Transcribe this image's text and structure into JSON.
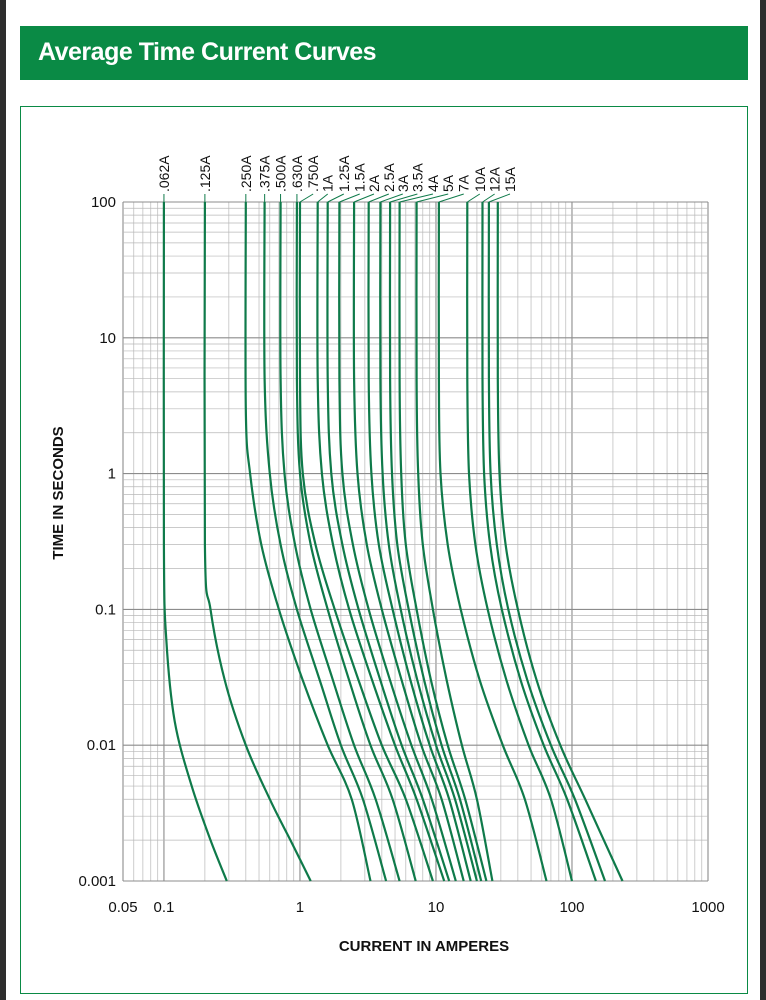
{
  "banner": {
    "title": "Average Time Current Curves"
  },
  "colors": {
    "accent": "#0a8a45",
    "curve": "#0f7a4a",
    "grid": "#b8b8b8"
  },
  "chart_data": {
    "type": "line",
    "title": "Average Time Current Curves",
    "xlabel": "CURRENT IN AMPERES",
    "ylabel": "TIME IN SECONDS",
    "xscale": "log",
    "yscale": "log",
    "xlim": [
      0.05,
      1000
    ],
    "ylim": [
      0.001,
      100
    ],
    "x_ticks": [
      {
        "v": 0.05,
        "label": "0.05"
      },
      {
        "v": 0.1,
        "label": "0.1"
      },
      {
        "v": 1,
        "label": "1"
      },
      {
        "v": 10,
        "label": "10"
      },
      {
        "v": 100,
        "label": "100"
      },
      {
        "v": 1000,
        "label": "1000"
      }
    ],
    "y_ticks": [
      {
        "v": 100,
        "label": "100"
      },
      {
        "v": 10,
        "label": "10"
      },
      {
        "v": 1,
        "label": "1"
      },
      {
        "v": 0.1,
        "label": "0.1"
      },
      {
        "v": 0.01,
        "label": "0.01"
      },
      {
        "v": 0.001,
        "label": "0.001"
      }
    ],
    "grid": true,
    "series": [
      {
        "name": ".062A",
        "points": [
          [
            0.1,
            100
          ],
          [
            0.1,
            0.3
          ],
          [
            0.104,
            0.06
          ],
          [
            0.12,
            0.015
          ],
          [
            0.16,
            0.005
          ],
          [
            0.22,
            0.002
          ],
          [
            0.29,
            0.001
          ]
        ]
      },
      {
        "name": ".125A",
        "points": [
          [
            0.2,
            100
          ],
          [
            0.2,
            0.3
          ],
          [
            0.22,
            0.1
          ],
          [
            0.28,
            0.03
          ],
          [
            0.4,
            0.01
          ],
          [
            0.6,
            0.004
          ],
          [
            0.85,
            0.002
          ],
          [
            1.2,
            0.001
          ]
        ]
      },
      {
        "name": ".250A",
        "points": [
          [
            0.4,
            100
          ],
          [
            0.4,
            3
          ],
          [
            0.43,
            1
          ],
          [
            0.52,
            0.3
          ],
          [
            0.7,
            0.1
          ],
          [
            1.05,
            0.03
          ],
          [
            1.6,
            0.01
          ],
          [
            2.4,
            0.004
          ],
          [
            3.3,
            0.001
          ]
        ]
      },
      {
        "name": ".375A",
        "points": [
          [
            0.55,
            100
          ],
          [
            0.55,
            5
          ],
          [
            0.6,
            1
          ],
          [
            0.72,
            0.3
          ],
          [
            0.95,
            0.1
          ],
          [
            1.4,
            0.03
          ],
          [
            2.0,
            0.01
          ],
          [
            2.9,
            0.004
          ],
          [
            4.3,
            0.001
          ]
        ]
      },
      {
        "name": ".500A",
        "points": [
          [
            0.72,
            100
          ],
          [
            0.72,
            5
          ],
          [
            0.77,
            1
          ],
          [
            0.92,
            0.3
          ],
          [
            1.2,
            0.1
          ],
          [
            1.75,
            0.03
          ],
          [
            2.5,
            0.01
          ],
          [
            3.6,
            0.004
          ],
          [
            5.4,
            0.001
          ]
        ]
      },
      {
        "name": ".630A",
        "points": [
          [
            0.95,
            100
          ],
          [
            0.95,
            5
          ],
          [
            1.0,
            1
          ],
          [
            1.2,
            0.3
          ],
          [
            1.6,
            0.1
          ],
          [
            2.3,
            0.03
          ],
          [
            3.3,
            0.01
          ],
          [
            4.8,
            0.004
          ],
          [
            7.1,
            0.001
          ]
        ]
      },
      {
        "name": ".750A",
        "points": [
          [
            1.0,
            100
          ],
          [
            1.0,
            5
          ],
          [
            1.05,
            1
          ],
          [
            1.3,
            0.3
          ],
          [
            1.8,
            0.1
          ],
          [
            2.7,
            0.03
          ],
          [
            4.0,
            0.01
          ],
          [
            6.0,
            0.004
          ],
          [
            9.5,
            0.001
          ]
        ]
      },
      {
        "name": "1A",
        "points": [
          [
            1.35,
            100
          ],
          [
            1.35,
            5
          ],
          [
            1.45,
            1
          ],
          [
            1.75,
            0.3
          ],
          [
            2.3,
            0.1
          ],
          [
            3.4,
            0.03
          ],
          [
            5.0,
            0.01
          ],
          [
            7.2,
            0.004
          ],
          [
            11.5,
            0.001
          ]
        ]
      },
      {
        "name": "1.25A",
        "points": [
          [
            1.6,
            100
          ],
          [
            1.6,
            5
          ],
          [
            1.7,
            1
          ],
          [
            2.05,
            0.3
          ],
          [
            2.7,
            0.1
          ],
          [
            3.9,
            0.03
          ],
          [
            5.6,
            0.01
          ],
          [
            8.0,
            0.004
          ],
          [
            12.5,
            0.001
          ]
        ]
      },
      {
        "name": "1.5A",
        "points": [
          [
            1.95,
            100
          ],
          [
            1.95,
            5
          ],
          [
            2.05,
            1
          ],
          [
            2.45,
            0.3
          ],
          [
            3.2,
            0.1
          ],
          [
            4.6,
            0.03
          ],
          [
            6.6,
            0.01
          ],
          [
            9.3,
            0.004
          ],
          [
            14,
            0.001
          ]
        ]
      },
      {
        "name": "2A",
        "points": [
          [
            2.5,
            100
          ],
          [
            2.5,
            5
          ],
          [
            2.65,
            1
          ],
          [
            3.1,
            0.3
          ],
          [
            4.0,
            0.1
          ],
          [
            5.6,
            0.03
          ],
          [
            7.8,
            0.01
          ],
          [
            11,
            0.004
          ],
          [
            16,
            0.001
          ]
        ]
      },
      {
        "name": "2.5A",
        "points": [
          [
            3.2,
            100
          ],
          [
            3.2,
            5
          ],
          [
            3.35,
            1
          ],
          [
            3.8,
            0.3
          ],
          [
            4.8,
            0.1
          ],
          [
            6.5,
            0.03
          ],
          [
            9.0,
            0.01
          ],
          [
            12.5,
            0.004
          ],
          [
            18,
            0.001
          ]
        ]
      },
      {
        "name": "3A",
        "points": [
          [
            3.9,
            100
          ],
          [
            3.9,
            5
          ],
          [
            4.05,
            1
          ],
          [
            4.5,
            0.3
          ],
          [
            5.5,
            0.1
          ],
          [
            7.3,
            0.03
          ],
          [
            10,
            0.01
          ],
          [
            13.8,
            0.004
          ],
          [
            20,
            0.001
          ]
        ]
      },
      {
        "name": "3.5A",
        "points": [
          [
            4.6,
            100
          ],
          [
            4.6,
            5
          ],
          [
            4.75,
            1
          ],
          [
            5.2,
            0.3
          ],
          [
            6.3,
            0.1
          ],
          [
            8.2,
            0.03
          ],
          [
            11,
            0.01
          ],
          [
            15,
            0.004
          ],
          [
            21.5,
            0.001
          ]
        ]
      },
      {
        "name": "4A",
        "points": [
          [
            5.4,
            100
          ],
          [
            5.4,
            5
          ],
          [
            5.55,
            1
          ],
          [
            6.0,
            0.3
          ],
          [
            7.2,
            0.1
          ],
          [
            9.2,
            0.03
          ],
          [
            12.2,
            0.01
          ],
          [
            16.4,
            0.004
          ],
          [
            23.5,
            0.001
          ]
        ]
      },
      {
        "name": "5A",
        "points": [
          [
            7.2,
            100
          ],
          [
            7.2,
            5
          ],
          [
            7.4,
            1
          ],
          [
            8.0,
            0.3
          ],
          [
            9.5,
            0.1
          ],
          [
            12,
            0.03
          ],
          [
            15.5,
            0.01
          ],
          [
            20,
            0.004
          ],
          [
            26,
            0.001
          ]
        ]
      },
      {
        "name": "7A",
        "points": [
          [
            10.5,
            100
          ],
          [
            10.5,
            5
          ],
          [
            10.8,
            1
          ],
          [
            12.2,
            0.3
          ],
          [
            15.2,
            0.1
          ],
          [
            21,
            0.03
          ],
          [
            31,
            0.01
          ],
          [
            45,
            0.004
          ],
          [
            65,
            0.001
          ]
        ]
      },
      {
        "name": "10A",
        "points": [
          [
            17,
            100
          ],
          [
            17,
            5
          ],
          [
            17.5,
            1
          ],
          [
            19.5,
            0.3
          ],
          [
            24,
            0.1
          ],
          [
            33,
            0.03
          ],
          [
            48,
            0.01
          ],
          [
            70,
            0.004
          ],
          [
            100,
            0.001
          ]
        ]
      },
      {
        "name": "12A",
        "points": [
          [
            22,
            100
          ],
          [
            22,
            5
          ],
          [
            22.6,
            1
          ],
          [
            25,
            0.3
          ],
          [
            30.5,
            0.1
          ],
          [
            42,
            0.03
          ],
          [
            62,
            0.01
          ],
          [
            92,
            0.004
          ],
          [
            150,
            0.001
          ]
        ]
      },
      {
        "name": "15A",
        "points": [
          [
            24.5,
            100
          ],
          [
            24.5,
            5
          ],
          [
            25.2,
            1
          ],
          [
            28,
            0.3
          ],
          [
            34,
            0.1
          ],
          [
            47,
            0.03
          ],
          [
            70,
            0.01
          ],
          [
            105,
            0.004
          ],
          [
            175,
            0.001
          ]
        ]
      },
      {
        "name": "",
        "points": [
          [
            28.5,
            100
          ],
          [
            28.5,
            5
          ],
          [
            29.3,
            1
          ],
          [
            32.5,
            0.3
          ],
          [
            40,
            0.1
          ],
          [
            55,
            0.03
          ],
          [
            82,
            0.01
          ],
          [
            125,
            0.004
          ],
          [
            235,
            0.001
          ]
        ]
      }
    ],
    "curve_labels": [
      {
        "label": ".062A",
        "x": 0.1
      },
      {
        "label": ".125A",
        "x": 0.2
      },
      {
        "label": ".250A",
        "x": 0.4
      },
      {
        "label": ".375A",
        "x": 0.55
      },
      {
        "label": ".500A",
        "x": 0.72
      },
      {
        "label": ".630A",
        "x": 0.95
      },
      {
        "label": ".750A",
        "x": 1.25
      },
      {
        "label": "1A",
        "x": 1.6
      },
      {
        "label": "1.25A",
        "x": 2.1
      },
      {
        "label": "1.5A",
        "x": 2.75
      },
      {
        "label": "2A",
        "x": 3.5
      },
      {
        "label": "2.5A",
        "x": 4.5
      },
      {
        "label": "3A",
        "x": 5.7
      },
      {
        "label": "3.5A",
        "x": 7.3
      },
      {
        "label": "4A",
        "x": 9.5
      },
      {
        "label": "5A",
        "x": 12.3
      },
      {
        "label": "7A",
        "x": 16
      },
      {
        "label": "10A",
        "x": 21
      },
      {
        "label": "12A",
        "x": 27
      },
      {
        "label": "15A",
        "x": 35
      }
    ]
  }
}
